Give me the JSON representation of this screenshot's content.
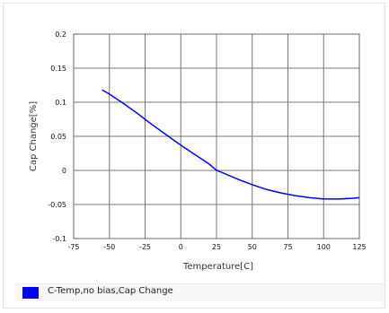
{
  "chart_data": {
    "type": "line",
    "xlabel": "Temperature[C]",
    "ylabel": "Cap Change[%]",
    "xlim": [
      -75,
      125
    ],
    "ylim": [
      -0.1,
      0.2
    ],
    "x_ticks": [
      -75,
      -50,
      -25,
      0,
      25,
      50,
      75,
      100,
      125
    ],
    "y_ticks": [
      0.2,
      0.15,
      0.1,
      0.05,
      0,
      -0.05,
      -0.1
    ],
    "x_tick_labels": [
      "-75",
      "-50",
      "-25",
      "0",
      "25",
      "50",
      "75",
      "100",
      "125"
    ],
    "y_tick_labels": [
      "0.2",
      "0.15",
      "0.1",
      "0.05",
      "0",
      "-0.05",
      "-0.1"
    ],
    "grid": true,
    "series": [
      {
        "name": "C-Temp,no bias,Cap Change",
        "color": "#0000ff",
        "x": [
          -55,
          -50,
          -40,
          -30,
          -25,
          -20,
          -10,
          0,
          10,
          20,
          25,
          30,
          40,
          50,
          60,
          70,
          75,
          80,
          90,
          100,
          105,
          110,
          120,
          125
        ],
        "y": [
          0.118,
          0.112,
          0.098,
          0.083,
          0.075,
          0.067,
          0.052,
          0.037,
          0.023,
          0.009,
          0.0,
          -0.004,
          -0.013,
          -0.021,
          -0.028,
          -0.033,
          -0.035,
          -0.037,
          -0.04,
          -0.042,
          -0.042,
          -0.042,
          -0.041,
          -0.04
        ]
      }
    ]
  },
  "legend": {
    "label": "C-Temp,no bias,Cap Change",
    "color": "#0000ff"
  }
}
